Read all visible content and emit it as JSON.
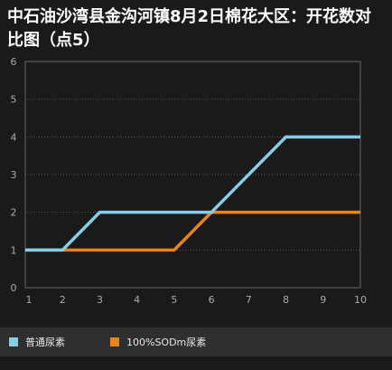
{
  "title": "中石油沙湾县金沟河镇8月2日棉花大区：开花数对比图（点5）",
  "chart_data": {
    "type": "line",
    "title": "中石油沙湾县金沟河镇8月2日棉花大区：开花数对比图（点5）",
    "xlabel": "",
    "ylabel": "",
    "x": [
      1,
      2,
      3,
      4,
      5,
      6,
      7,
      8,
      9,
      10
    ],
    "xlim": [
      1,
      10
    ],
    "ylim": [
      0,
      6
    ],
    "yticks": [
      0,
      1,
      2,
      3,
      4,
      5,
      6
    ],
    "xticks": [
      1,
      2,
      3,
      4,
      5,
      6,
      7,
      8,
      9,
      10
    ],
    "grid": true,
    "legend_position": "bottom",
    "series": [
      {
        "name": "普通尿素",
        "values": [
          1,
          1,
          2,
          2,
          2,
          2,
          3,
          4,
          4,
          4
        ],
        "color": "#87cdea"
      },
      {
        "name": "100%SODm尿素",
        "values": [
          1,
          1,
          1,
          1,
          1,
          2,
          2,
          2,
          2,
          2
        ],
        "color": "#e8831f"
      }
    ]
  },
  "colors": {
    "background": "#1a1a1a",
    "plot_border": "#666666",
    "grid": "#555555",
    "tick_label": "#aaaaaa",
    "legend_bg": "#2f2f2f"
  }
}
